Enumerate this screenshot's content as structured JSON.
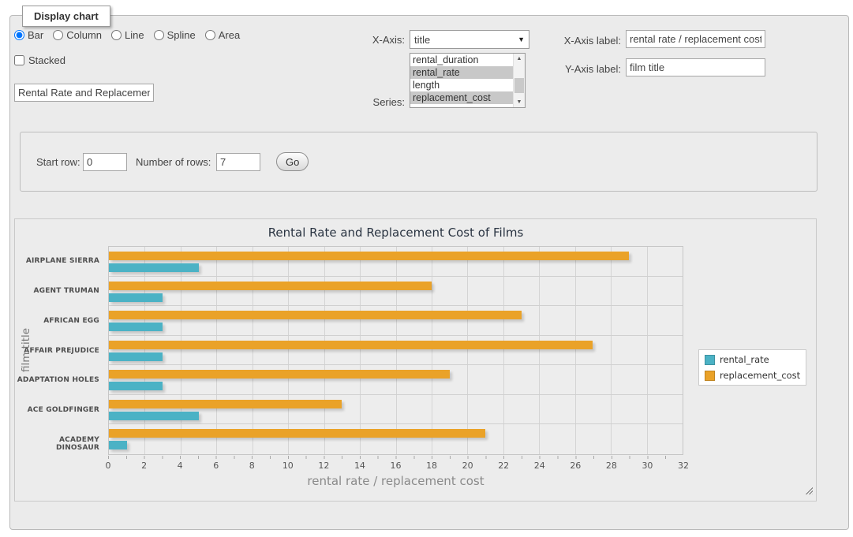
{
  "panel_title": "Display chart",
  "chart_type": {
    "options": [
      {
        "label": "Bar",
        "checked": true
      },
      {
        "label": "Column",
        "checked": false
      },
      {
        "label": "Line",
        "checked": false
      },
      {
        "label": "Spline",
        "checked": false
      },
      {
        "label": "Area",
        "checked": false
      }
    ]
  },
  "stacked": {
    "label": "Stacked",
    "checked": false
  },
  "chart_title_input": {
    "value": "Rental Rate and Replacement Cost of Films"
  },
  "x_axis": {
    "label": "X-Axis:",
    "selected": "title"
  },
  "series": {
    "label": "Series:",
    "options": [
      {
        "label": "rental_duration",
        "selected": false
      },
      {
        "label": "rental_rate",
        "selected": true
      },
      {
        "label": "length",
        "selected": false
      },
      {
        "label": "replacement_cost",
        "selected": true
      }
    ]
  },
  "x_axis_label": {
    "label": "X-Axis label:",
    "value": "rental rate / replacement cost"
  },
  "y_axis_label": {
    "label": "Y-Axis label:",
    "value": "film title"
  },
  "row_options": {
    "start_row_label": "Start row:",
    "start_row_value": "0",
    "num_rows_label": "Number of rows:",
    "num_rows_value": "7",
    "go_label": "Go"
  },
  "icons": {
    "dropdown_arrow": "▼",
    "scroll_up": "▲",
    "scroll_down": "▼"
  },
  "colors": {
    "teal": "#4bb2c5",
    "orange": "#eaa228",
    "panel_bg": "#ebebeb"
  },
  "chart_data": {
    "type": "bar",
    "orientation": "horizontal",
    "title": "Rental Rate and Replacement Cost of Films",
    "categories": [
      "AIRPLANE SIERRA",
      "AGENT TRUMAN",
      "AFRICAN EGG",
      "AFFAIR PREJUDICE",
      "ADAPTATION HOLES",
      "ACE GOLDFINGER",
      "ACADEMY DINOSAUR"
    ],
    "series": [
      {
        "name": "rental_rate",
        "color": "#4bb2c5",
        "values": [
          5,
          3,
          3,
          3,
          3,
          5,
          1
        ]
      },
      {
        "name": "replacement_cost",
        "color": "#eaa228",
        "values": [
          29,
          18,
          23,
          27,
          19,
          13,
          21
        ]
      }
    ],
    "xlabel": "rental rate / replacement cost",
    "ylabel": "film title",
    "xlim": [
      0,
      32
    ],
    "x_ticks": [
      0,
      2,
      4,
      6,
      8,
      10,
      12,
      14,
      16,
      18,
      20,
      22,
      24,
      26,
      28,
      30,
      32
    ],
    "grid": true,
    "legend_position": "right"
  }
}
